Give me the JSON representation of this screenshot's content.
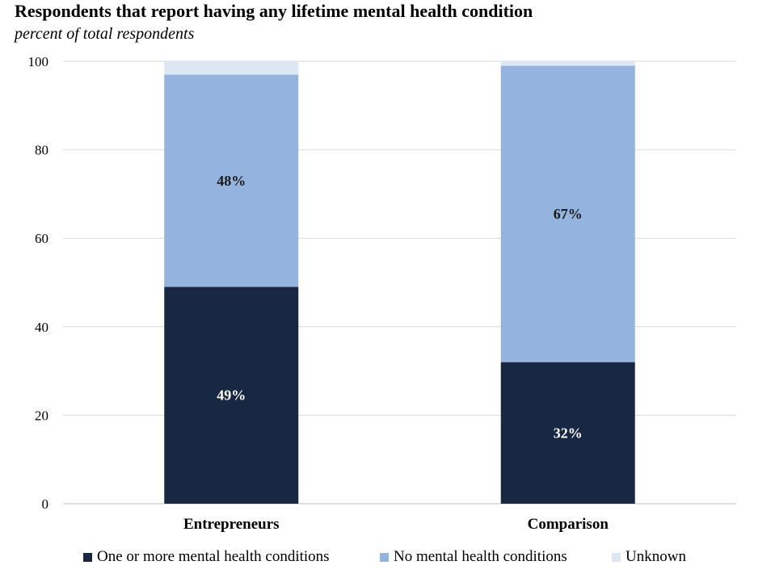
{
  "chart_data": {
    "type": "bar",
    "stacked": true,
    "title": "Respondents that report having any lifetime mental health condition",
    "subtitle": "percent of total respondents",
    "categories": [
      "Entrepreneurs",
      "Comparison"
    ],
    "series": [
      {
        "name": "One or more mental health conditions",
        "color": "#182742",
        "values": [
          49,
          32
        ],
        "labels": [
          "49%",
          "32%"
        ]
      },
      {
        "name": "No mental health conditions",
        "color": "#95b3df",
        "values": [
          48,
          67
        ],
        "labels": [
          "48%",
          "67%"
        ]
      },
      {
        "name": "Unknown",
        "color": "#dbe8f3",
        "values": [
          3,
          1
        ],
        "labels": [
          "",
          ""
        ]
      }
    ],
    "ylim": [
      0,
      100
    ],
    "yticks": [
      0,
      20,
      40,
      60,
      80,
      100
    ],
    "grid": true,
    "legend_position": "bottom"
  }
}
